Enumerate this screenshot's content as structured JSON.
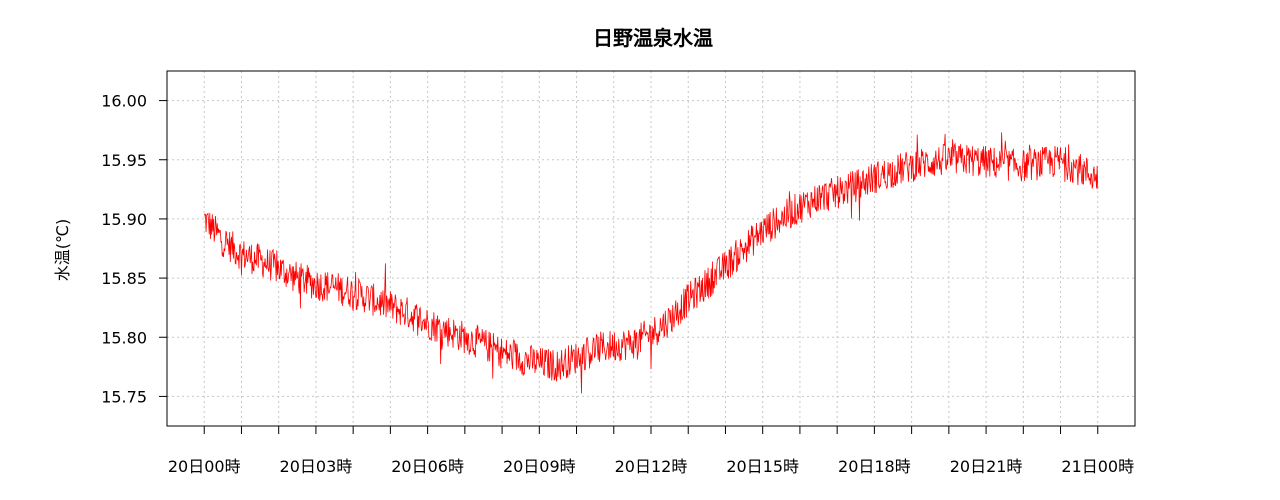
{
  "chart_data": {
    "type": "line",
    "title": "日野温泉水温",
    "xlabel": "",
    "ylabel": "水温(℃)",
    "ylim": [
      15.725,
      16.025
    ],
    "y_ticks": [
      15.75,
      15.8,
      15.85,
      15.9,
      15.95,
      16.0
    ],
    "y_tick_labels": [
      "15.75",
      "15.80",
      "15.85",
      "15.90",
      "15.95",
      "16.00"
    ],
    "x_tick_labels": [
      "20日00時",
      "20日03時",
      "20日06時",
      "20日09時",
      "20日12時",
      "20日15時",
      "20日18時",
      "20日21時",
      "21日00時"
    ],
    "x_ticks_hours": [
      0,
      3,
      6,
      9,
      12,
      15,
      18,
      21,
      24
    ],
    "x_minor_ticks_hours": [
      1,
      2,
      4,
      5,
      7,
      8,
      10,
      11,
      13,
      14,
      16,
      17,
      19,
      20,
      22,
      23
    ],
    "xlim_hours": [
      -1,
      25
    ],
    "grid": true,
    "color": "#ff0000",
    "series": [
      {
        "x_hours": [
          0,
          0.5,
          1,
          1.5,
          2,
          2.5,
          3,
          3.5,
          4,
          4.5,
          5,
          5.5,
          6,
          6.5,
          7,
          7.5,
          8,
          8.5,
          9,
          9.5,
          10,
          10.5,
          11,
          11.5,
          12,
          12.5,
          13,
          13.5,
          14,
          14.5,
          15,
          15.5,
          16,
          16.5,
          17,
          17.5,
          18,
          18.5,
          19,
          19.5,
          20,
          20.5,
          21,
          21.5,
          22,
          22.5,
          23,
          23.5,
          24
        ],
        "values": [
          15.9,
          15.882,
          15.87,
          15.865,
          15.858,
          15.85,
          15.845,
          15.842,
          15.838,
          15.832,
          15.826,
          15.82,
          15.812,
          15.806,
          15.8,
          15.794,
          15.787,
          15.782,
          15.778,
          15.776,
          15.783,
          15.79,
          15.793,
          15.795,
          15.803,
          15.815,
          15.832,
          15.845,
          15.86,
          15.875,
          15.89,
          15.9,
          15.91,
          15.918,
          15.922,
          15.928,
          15.935,
          15.94,
          15.945,
          15.948,
          15.95,
          15.95,
          15.948,
          15.946,
          15.945,
          15.947,
          15.949,
          15.942,
          15.935
        ]
      }
    ]
  }
}
